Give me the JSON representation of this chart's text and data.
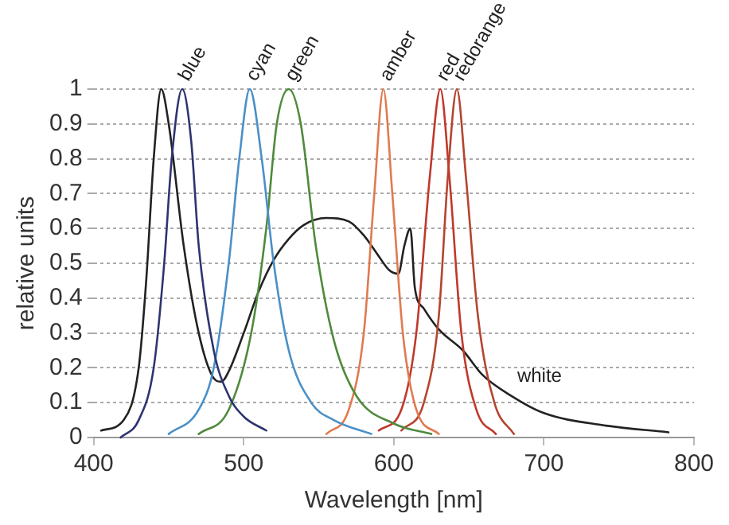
{
  "chart_data": {
    "type": "line",
    "xlabel": "Wavelength [nm]",
    "ylabel": "relative units",
    "xlim": [
      400,
      800
    ],
    "xticks": [
      400,
      500,
      600,
      700,
      800
    ],
    "ylim": [
      0,
      1
    ],
    "yticks": [
      0,
      0.1,
      0.2,
      0.3,
      0.4,
      0.5,
      0.6,
      0.7,
      0.8,
      0.9,
      1
    ],
    "grid": "y",
    "legend": false,
    "marker": "none",
    "line_style": "solid",
    "series": [
      {
        "name": "blue",
        "color": "#2f3470",
        "x": [
          418,
          430,
          440,
          447,
          452,
          459,
          465,
          470,
          480,
          490,
          500,
          515
        ],
        "values": [
          0,
          0.05,
          0.2,
          0.5,
          0.8,
          1,
          0.85,
          0.55,
          0.25,
          0.12,
          0.06,
          0.02
        ]
      },
      {
        "name": "cyan",
        "color": "#4a90c8",
        "x": [
          450,
          470,
          480,
          490,
          497,
          504,
          512,
          520,
          530,
          545,
          560,
          585
        ],
        "values": [
          0.01,
          0.08,
          0.2,
          0.5,
          0.8,
          1,
          0.8,
          0.5,
          0.25,
          0.1,
          0.05,
          0.01
        ]
      },
      {
        "name": "green",
        "color": "#4f8a3c",
        "x": [
          470,
          490,
          505,
          515,
          522,
          530,
          538,
          548,
          560,
          575,
          600,
          625
        ],
        "values": [
          0.01,
          0.08,
          0.3,
          0.6,
          0.9,
          1,
          0.9,
          0.55,
          0.28,
          0.12,
          0.04,
          0.01
        ]
      },
      {
        "name": "amber",
        "color": "#e07a50",
        "x": [
          555,
          570,
          580,
          587,
          593,
          599,
          606,
          615,
          630
        ],
        "values": [
          0.01,
          0.08,
          0.3,
          0.7,
          1,
          0.7,
          0.3,
          0.08,
          0.01
        ]
      },
      {
        "name": "red",
        "color": "#c0392b",
        "x": [
          590,
          605,
          615,
          624,
          631,
          637,
          645,
          655,
          668
        ],
        "values": [
          0.02,
          0.08,
          0.3,
          0.75,
          1,
          0.75,
          0.3,
          0.08,
          0.01
        ]
      },
      {
        "name": "redorange",
        "color": "#b5452f",
        "x": [
          605,
          620,
          630,
          636,
          642,
          648,
          656,
          667,
          680
        ],
        "values": [
          0.02,
          0.1,
          0.35,
          0.75,
          1,
          0.75,
          0.35,
          0.1,
          0.01
        ]
      },
      {
        "name": "white",
        "color": "#222222",
        "x": [
          405,
          420,
          430,
          435,
          440,
          445,
          450,
          460,
          470,
          480,
          485,
          490,
          500,
          510,
          520,
          530,
          540,
          555,
          570,
          580,
          590,
          597,
          603,
          607,
          611,
          614,
          620,
          630,
          646,
          659,
          678,
          700,
          740,
          783
        ],
        "values": [
          0.02,
          0.05,
          0.2,
          0.45,
          0.8,
          1,
          0.9,
          0.55,
          0.3,
          0.17,
          0.16,
          0.19,
          0.3,
          0.42,
          0.51,
          0.57,
          0.61,
          0.63,
          0.62,
          0.58,
          0.52,
          0.48,
          0.47,
          0.55,
          0.6,
          0.43,
          0.37,
          0.31,
          0.25,
          0.18,
          0.12,
          0.07,
          0.035,
          0.015
        ]
      }
    ]
  }
}
